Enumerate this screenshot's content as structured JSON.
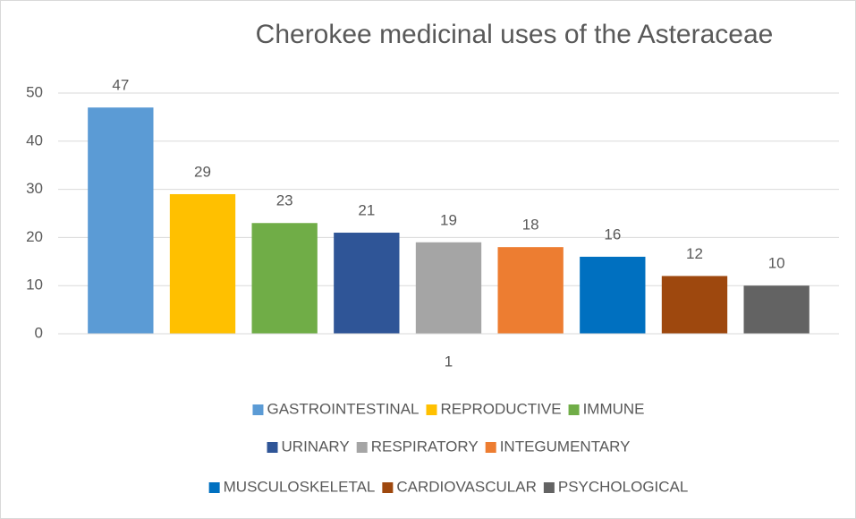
{
  "chart_data": {
    "type": "bar",
    "title": "Cherokee medicinal uses of the Asteraceae",
    "categories": [
      "1"
    ],
    "series": [
      {
        "name": "GASTROINTESTINAL",
        "color": "#5b9bd5",
        "values": [
          47
        ]
      },
      {
        "name": "REPRODUCTIVE",
        "color": "#ffc000",
        "values": [
          29
        ]
      },
      {
        "name": "IMMUNE",
        "color": "#70ad47",
        "values": [
          23
        ]
      },
      {
        "name": "URINARY",
        "color": "#2f5597",
        "values": [
          21
        ]
      },
      {
        "name": "RESPIRATORY",
        "color": "#a5a5a5",
        "values": [
          19
        ]
      },
      {
        "name": "INTEGUMENTARY",
        "color": "#ed7d31",
        "values": [
          18
        ]
      },
      {
        "name": "MUSCULOSKELETAL",
        "color": "#0070c0",
        "values": [
          16
        ]
      },
      {
        "name": "CARDIOVASCULAR",
        "color": "#9e480e",
        "values": [
          12
        ]
      },
      {
        "name": "PSYCHOLOGICAL",
        "color": "#636363",
        "values": [
          10
        ]
      }
    ],
    "ylim": [
      0,
      50
    ],
    "yticks": [
      0,
      10,
      20,
      30,
      40,
      50
    ],
    "grid": true,
    "legend": "bottom"
  }
}
